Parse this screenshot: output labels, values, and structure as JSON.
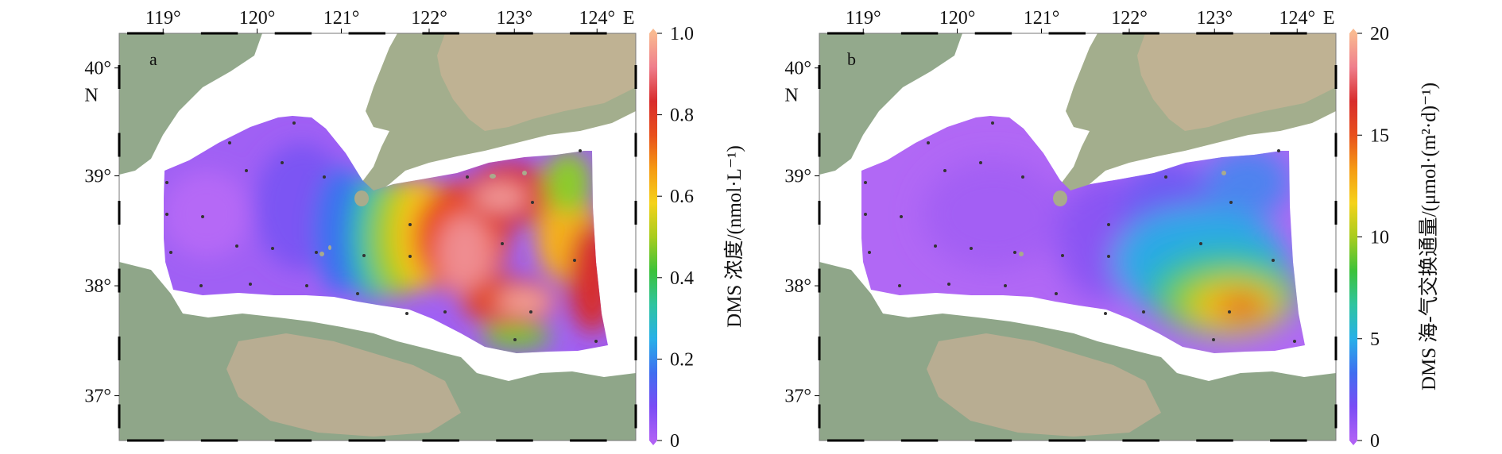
{
  "panels": [
    {
      "letter": "a",
      "lon_ticks": [
        "119°",
        "120°",
        "121°",
        "122°",
        "123°",
        "124°"
      ],
      "lon_suffix": "E",
      "lat_ticks": [
        "40°",
        "39°",
        "38°",
        "37°"
      ],
      "lat_suffix": "N",
      "colorbar": {
        "ticks": [
          "0",
          "0.2",
          "0.4",
          "0.6",
          "0.8",
          "1.0"
        ],
        "tick_values": [
          0,
          0.2,
          0.4,
          0.6,
          0.8,
          1.0
        ],
        "range": [
          0,
          1.0
        ],
        "label": "DMS 浓度/(nmol·L⁻¹)"
      }
    },
    {
      "letter": "b",
      "lon_ticks": [
        "119°",
        "120°",
        "121°",
        "122°",
        "123°",
        "124°"
      ],
      "lon_suffix": "E",
      "lat_ticks": [
        "40°",
        "39°",
        "38°",
        "37°"
      ],
      "lat_suffix": "N",
      "colorbar": {
        "ticks": [
          "0",
          "5",
          "10",
          "15",
          "20"
        ],
        "tick_values": [
          0,
          5,
          10,
          15,
          20
        ],
        "range": [
          0,
          20
        ],
        "label": "DMS 海-气交换通量/(μmol·(m²·d)⁻¹)"
      }
    }
  ],
  "colormap": [
    "#b061f5",
    "#7a4cf5",
    "#3f6ef0",
    "#27b0e8",
    "#2fc4a0",
    "#3cc23a",
    "#a8cc1e",
    "#f5d21a",
    "#f59a12",
    "#e8501c",
    "#d82c2c",
    "#ef7e8c",
    "#f9b990"
  ],
  "colors": {
    "land_low": "#8ea88a",
    "land_high": "#c8b596",
    "sea": "#ffffff",
    "station": "#333333"
  }
}
